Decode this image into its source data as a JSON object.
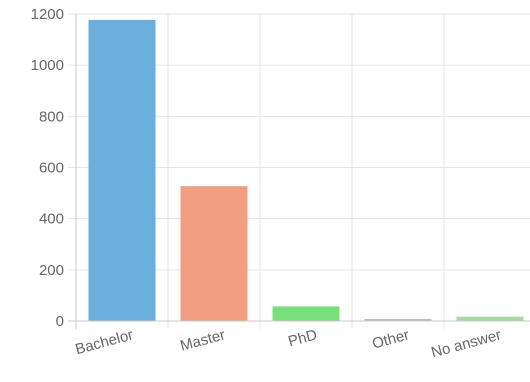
{
  "chart_data": {
    "type": "bar",
    "categories": [
      "Bachelor",
      "Master",
      "PhD",
      "Other",
      "No answer"
    ],
    "values": [
      1175,
      525,
      55,
      2,
      15
    ],
    "colors": [
      "#6aaedc",
      "#f19e83",
      "#79df78",
      "#bdbdbd",
      "#a6d9a3"
    ],
    "title": "",
    "xlabel": "",
    "ylabel": "",
    "ylim": [
      0,
      1200
    ],
    "yticks": [
      0,
      200,
      400,
      600,
      800,
      1000,
      1200
    ],
    "grid": true,
    "legend": "none"
  }
}
